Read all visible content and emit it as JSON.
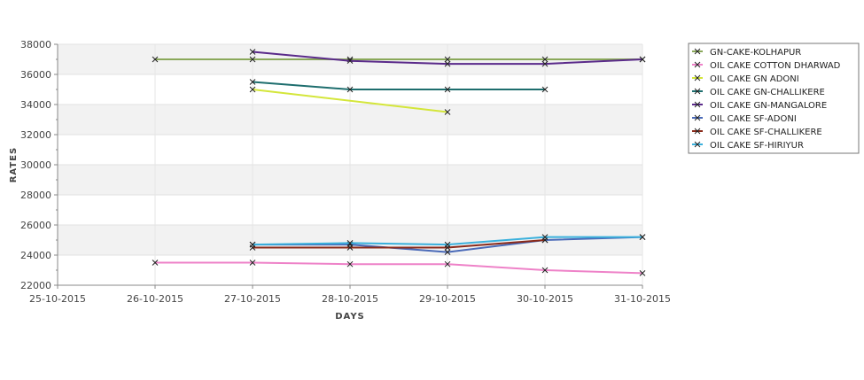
{
  "chart_data": {
    "type": "line",
    "xlabel": "DAYS",
    "ylabel": "RATES",
    "x_categories": [
      "25-10-2015",
      "26-10-2015",
      "27-10-2015",
      "28-10-2015",
      "29-10-2015",
      "30-10-2015",
      "31-10-2015"
    ],
    "ylim": [
      22000,
      38000
    ],
    "y_ticks": [
      22000,
      24000,
      26000,
      28000,
      30000,
      32000,
      34000,
      36000,
      38000
    ],
    "grid": true,
    "legend_position": "right",
    "series": [
      {
        "name": "GN-CAKE-KOLHAPUR",
        "color": "#8aa85a",
        "points": [
          [
            "26-10-2015",
            37000
          ],
          [
            "27-10-2015",
            37000
          ],
          [
            "28-10-2015",
            37000
          ],
          [
            "29-10-2015",
            37000
          ],
          [
            "30-10-2015",
            37000
          ],
          [
            "31-10-2015",
            37000
          ]
        ]
      },
      {
        "name": "OIL CAKE COTTON DHARWAD",
        "color": "#ee82c8",
        "points": [
          [
            "26-10-2015",
            23500
          ],
          [
            "27-10-2015",
            23500
          ],
          [
            "28-10-2015",
            23400
          ],
          [
            "29-10-2015",
            23400
          ],
          [
            "30-10-2015",
            23000
          ],
          [
            "31-10-2015",
            22800
          ]
        ]
      },
      {
        "name": "OIL CAKE GN ADONI",
        "color": "#d4e63a",
        "points": [
          [
            "27-10-2015",
            35000
          ],
          [
            "29-10-2015",
            33500
          ]
        ]
      },
      {
        "name": "OIL CAKE GN-CHALLIKERE",
        "color": "#1e6e6e",
        "points": [
          [
            "27-10-2015",
            35500
          ],
          [
            "28-10-2015",
            35000
          ],
          [
            "29-10-2015",
            35000
          ],
          [
            "30-10-2015",
            35000
          ]
        ]
      },
      {
        "name": "OIL CAKE GN-MANGALORE",
        "color": "#5a2a8a",
        "points": [
          [
            "27-10-2015",
            37500
          ],
          [
            "28-10-2015",
            36900
          ],
          [
            "29-10-2015",
            36700
          ],
          [
            "30-10-2015",
            36700
          ],
          [
            "31-10-2015",
            37000
          ]
        ]
      },
      {
        "name": "OIL CAKE SF-ADONI",
        "color": "#4a6ab8",
        "points": [
          [
            "27-10-2015",
            24700
          ],
          [
            "28-10-2015",
            24700
          ],
          [
            "29-10-2015",
            24200
          ],
          [
            "30-10-2015",
            25000
          ],
          [
            "31-10-2015",
            25200
          ]
        ]
      },
      {
        "name": "OIL CAKE SF-CHALLIKERE",
        "color": "#8a2a1a",
        "points": [
          [
            "27-10-2015",
            24500
          ],
          [
            "28-10-2015",
            24500
          ],
          [
            "29-10-2015",
            24500
          ],
          [
            "30-10-2015",
            25000
          ]
        ]
      },
      {
        "name": "OIL CAKE SF-HIRIYUR",
        "color": "#3ab0dc",
        "points": [
          [
            "27-10-2015",
            24700
          ],
          [
            "28-10-2015",
            24800
          ],
          [
            "29-10-2015",
            24700
          ],
          [
            "30-10-2015",
            25200
          ],
          [
            "31-10-2015",
            25200
          ]
        ]
      }
    ]
  }
}
